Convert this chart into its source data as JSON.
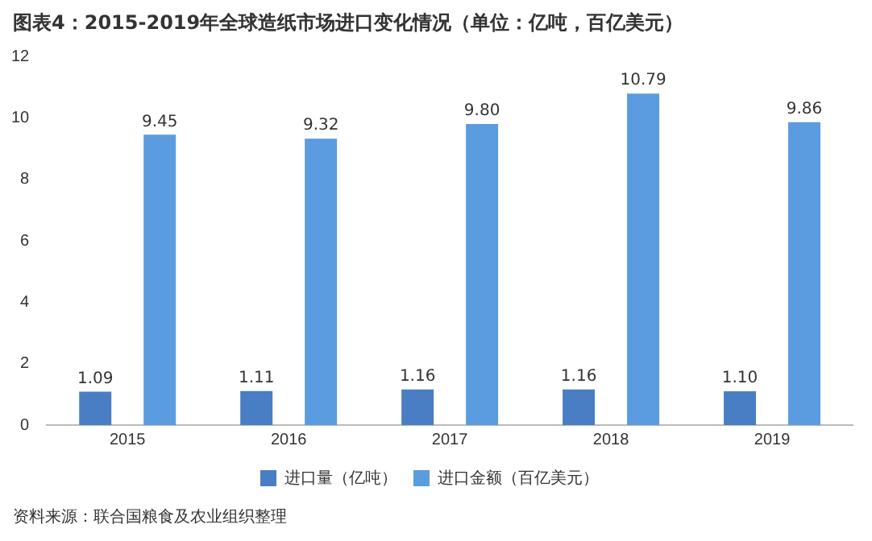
{
  "chart_data": {
    "type": "bar",
    "title": "图表4：2015-2019年全球造纸市场进口变化情况（单位：亿吨，百亿美元）",
    "categories": [
      "2015",
      "2016",
      "2017",
      "2018",
      "2019"
    ],
    "series": [
      {
        "name": "进口量（亿吨）",
        "color": "#4a7ec4",
        "values": [
          1.09,
          1.11,
          1.16,
          1.16,
          1.1
        ],
        "value_labels": [
          "1.09",
          "1.11",
          "1.16",
          "1.16",
          "1.10"
        ]
      },
      {
        "name": "进口金额（百亿美元）",
        "color": "#5b9be0",
        "values": [
          9.45,
          9.32,
          9.8,
          10.79,
          9.86
        ],
        "value_labels": [
          "9.45",
          "9.32",
          "9.80",
          "10.79",
          "9.86"
        ]
      }
    ],
    "ylim": [
      0,
      12
    ],
    "yticks": [
      0,
      2,
      4,
      6,
      8,
      10,
      12
    ],
    "grid": false,
    "legend": "bottom",
    "annotations": [
      "资料来源：联合国粮食及农业组织整理"
    ]
  }
}
